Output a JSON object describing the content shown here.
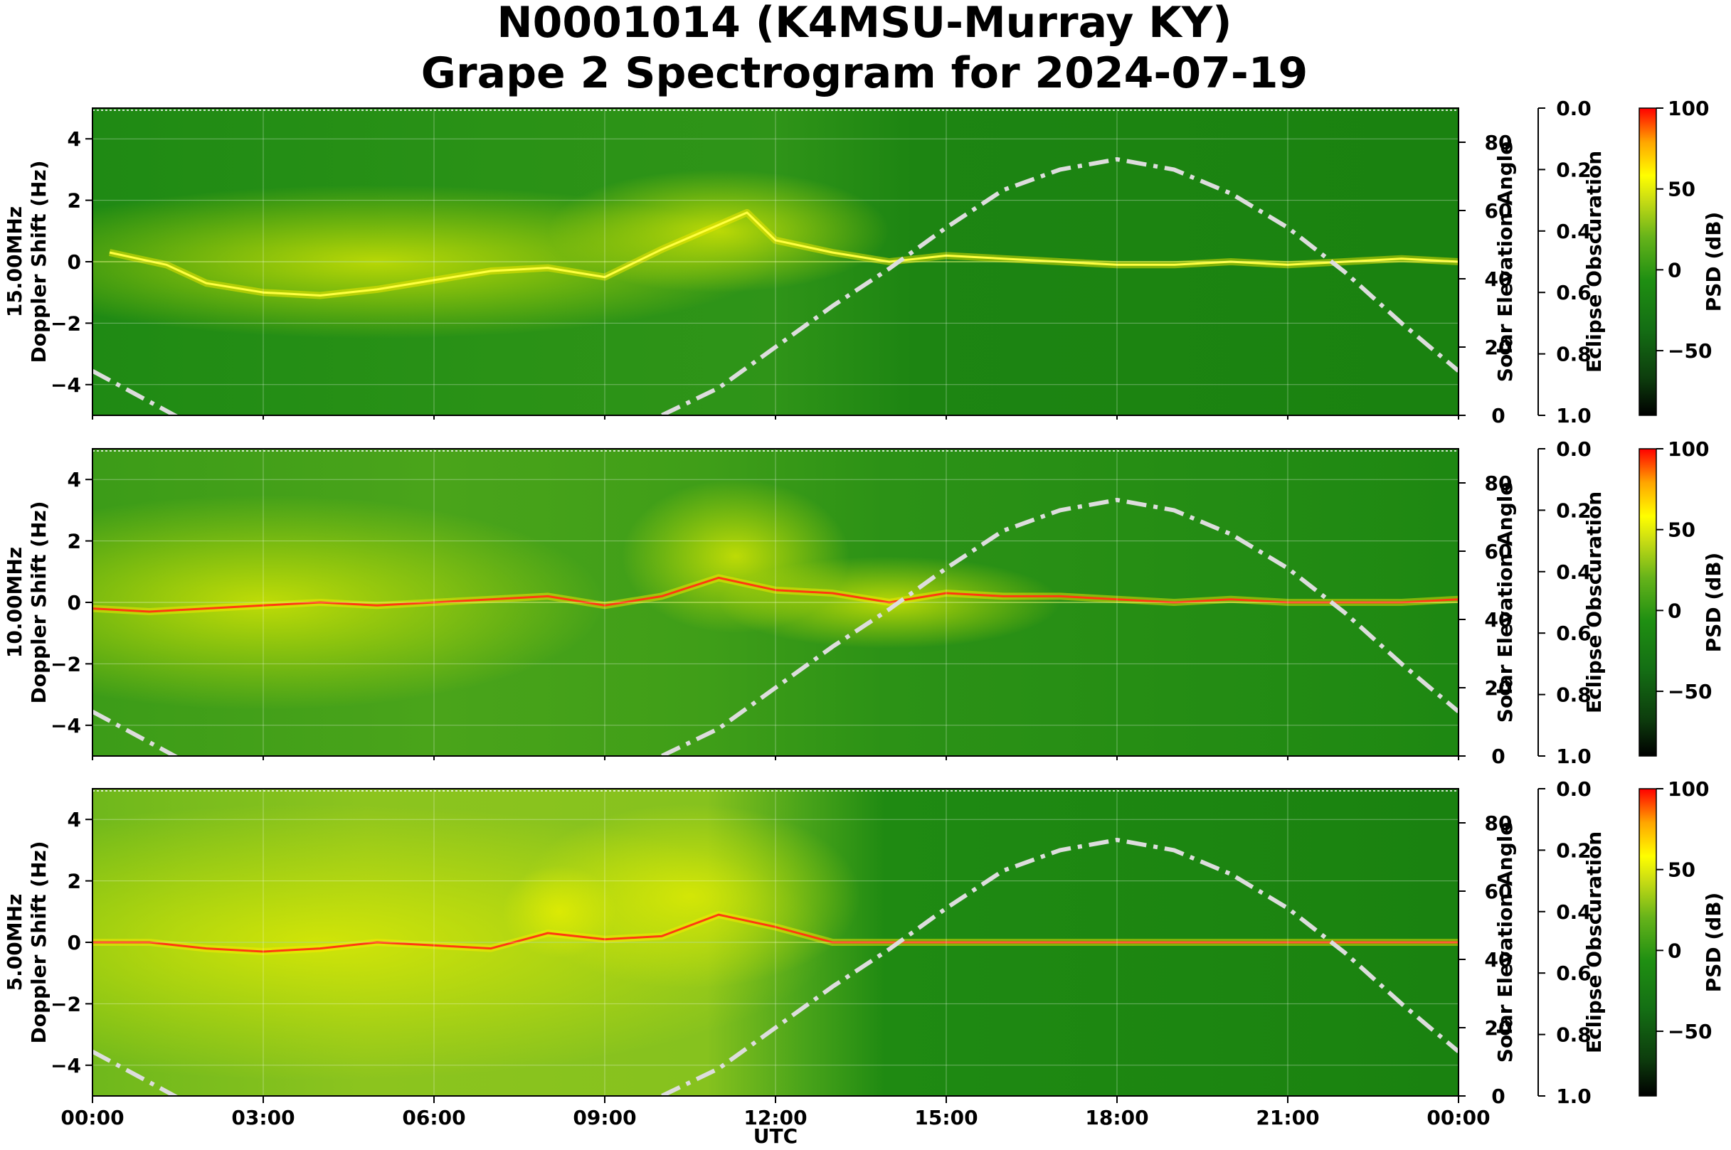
{
  "title_line1": "N0001014 (K4MSU-Murray KY)",
  "title_line2": "Grape 2 Spectrogram for 2024-07-19",
  "chart_data": {
    "type": "heatmap",
    "xlabel": "UTC",
    "x_ticks": [
      "00:00",
      "03:00",
      "06:00",
      "09:00",
      "12:00",
      "15:00",
      "18:00",
      "21:00",
      "00:00"
    ],
    "x_range_hours": [
      0,
      24
    ],
    "doppler_ylabel": "Doppler Shift (Hz)",
    "doppler_ylim": [
      -5,
      5
    ],
    "doppler_ticks": [
      4,
      2,
      0,
      -2,
      -4
    ],
    "doppler_tick_labels": [
      "4",
      "2",
      "0",
      "−2",
      "−4"
    ],
    "solar_ylabel": "Solar Elevation Angle",
    "solar_ylim": [
      0,
      90
    ],
    "solar_ticks": [
      0,
      20,
      40,
      60,
      80
    ],
    "solar_tick_labels": [
      "0",
      "20",
      "40",
      "60",
      "80"
    ],
    "eclipse_ylabel": "Eclipse Obscuration",
    "eclipse_ylim": [
      1.0,
      0.0
    ],
    "eclipse_ticks": [
      0.0,
      0.2,
      0.4,
      0.6,
      0.8,
      1.0
    ],
    "eclipse_tick_labels": [
      "0.0",
      "0.2",
      "0.4",
      "0.6",
      "0.8",
      "1.0"
    ],
    "colorbar_label": "PSD (dB)",
    "colorbar_range": [
      -90,
      100
    ],
    "colorbar_ticks": [
      100,
      50,
      0,
      -50
    ],
    "colorbar_tick_labels": [
      "100",
      "50",
      "0",
      "−50"
    ],
    "colormap": [
      "#000000",
      "#0d3d0d",
      "#146e14",
      "#1f8f12",
      "#66b31a",
      "#c8dc14",
      "#ffff00",
      "#ffa500",
      "#ff0000"
    ],
    "grid": true,
    "solar_elevation_curve": {
      "style": "dash-dot",
      "color": "#dddddd",
      "x_hours": [
        0,
        1,
        2,
        3,
        4,
        5,
        6,
        7,
        8,
        9,
        10,
        11,
        12,
        13,
        14,
        15,
        16,
        17,
        18,
        19,
        20,
        21,
        22,
        23,
        24
      ],
      "y_degrees": [
        13,
        4,
        -5,
        -14,
        -22,
        -24,
        -22,
        -12,
        -7,
        -5,
        0,
        8,
        20,
        32,
        43,
        55,
        66,
        72,
        75,
        72,
        65,
        55,
        42,
        27,
        13
      ]
    },
    "panels": [
      {
        "label": "15.00MHz",
        "doppler_trace": {
          "x_hours": [
            0.3,
            0.8,
            1.3,
            2,
            3,
            4,
            5,
            6,
            7,
            8,
            9,
            10,
            11,
            11.5,
            12,
            13,
            14,
            15,
            16,
            17,
            18,
            19,
            20,
            21,
            22,
            23,
            24
          ],
          "y_hz": [
            0.3,
            0.1,
            -0.1,
            -0.7,
            -1.0,
            -1.1,
            -0.9,
            -0.6,
            -0.3,
            -0.2,
            -0.5,
            0.4,
            1.2,
            1.6,
            0.7,
            0.3,
            0.0,
            0.2,
            0.1,
            0.0,
            -0.1,
            -0.1,
            0.0,
            -0.1,
            0.0,
            0.1,
            0.0
          ]
        }
      },
      {
        "label": "10.00MHz",
        "doppler_trace": {
          "x_hours": [
            0,
            1,
            2,
            3,
            4,
            5,
            6,
            7,
            8,
            9,
            10,
            11,
            12,
            13,
            14,
            15,
            16,
            17,
            18,
            19,
            20,
            21,
            22,
            23,
            24
          ],
          "y_hz": [
            -0.2,
            -0.3,
            -0.2,
            -0.1,
            0.0,
            -0.1,
            0.0,
            0.1,
            0.2,
            -0.1,
            0.2,
            0.8,
            0.4,
            0.3,
            0.0,
            0.3,
            0.2,
            0.2,
            0.1,
            0.0,
            0.1,
            0.0,
            0.0,
            0.0,
            0.1
          ]
        }
      },
      {
        "label": "5.00MHz",
        "doppler_trace": {
          "x_hours": [
            0,
            1,
            2,
            3,
            4,
            5,
            6,
            7,
            8,
            9,
            10,
            11,
            12,
            13,
            14,
            15,
            16,
            17,
            18,
            19,
            20,
            21,
            22,
            23,
            24
          ],
          "y_hz": [
            0.0,
            0.0,
            -0.2,
            -0.3,
            -0.2,
            0.0,
            -0.1,
            -0.2,
            0.3,
            0.1,
            0.2,
            0.9,
            0.5,
            0.0,
            0.0,
            0.0,
            0.0,
            0.0,
            0.0,
            0.0,
            0.0,
            0.0,
            0.0,
            0.0,
            0.0
          ]
        }
      }
    ]
  }
}
